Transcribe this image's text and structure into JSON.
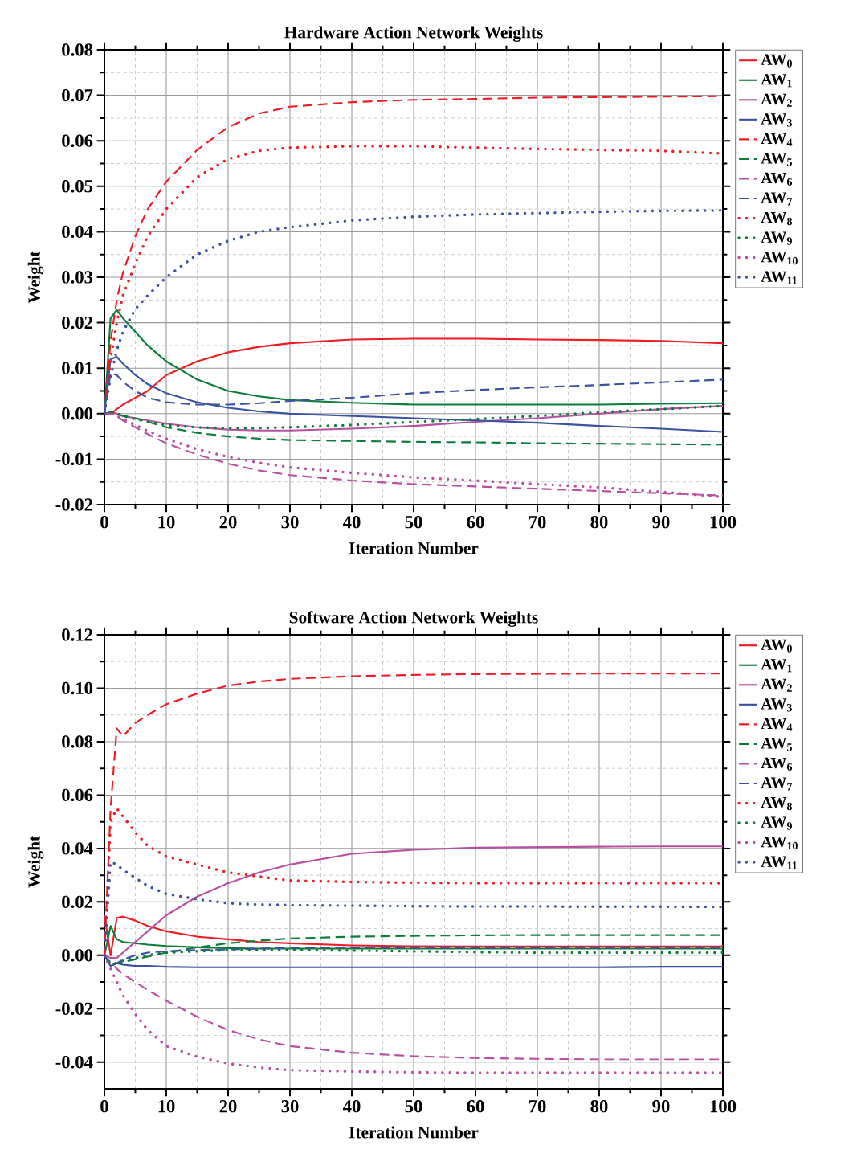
{
  "chart_data": [
    {
      "type": "line",
      "title": "Hardware Action Network Weights",
      "xlabel": "Iteration Number",
      "ylabel": "Weight",
      "x": [
        0,
        1,
        2,
        3,
        5,
        7,
        10,
        15,
        20,
        25,
        30,
        40,
        50,
        60,
        70,
        80,
        90,
        100
      ],
      "xlim": [
        0,
        100
      ],
      "xticks": [
        0,
        10,
        20,
        30,
        40,
        50,
        60,
        70,
        80,
        90,
        100
      ],
      "ylim": [
        -0.02,
        0.08
      ],
      "yticks": [
        {
          "value": -0.02,
          "label": "-0.02"
        },
        {
          "value": -0.01,
          "label": "-0.01"
        },
        {
          "value": 0,
          "label": "0.00"
        },
        {
          "value": 0.01,
          "label": "0.01"
        },
        {
          "value": 0.02,
          "label": "0.02"
        },
        {
          "value": 0.03,
          "label": "0.03"
        },
        {
          "value": 0.04,
          "label": "0.04"
        },
        {
          "value": 0.05,
          "label": "0.05"
        },
        {
          "value": 0.06,
          "label": "0.06"
        },
        {
          "value": 0.07,
          "label": "0.07"
        },
        {
          "value": 0.08,
          "label": "0.08"
        }
      ],
      "grid": true,
      "legend": "right",
      "marker": "none",
      "series": [
        {
          "name": "AW$_{0}$",
          "color": "#ee1c24",
          "line_style": "solid",
          "values": [
            0,
            0,
            0.001,
            0.002,
            0.0035,
            0.005,
            0.0085,
            0.0115,
            0.0135,
            0.0147,
            0.0155,
            0.0163,
            0.0165,
            0.0165,
            0.0163,
            0.0162,
            0.016,
            0.0155
          ]
        },
        {
          "name": "AW$_{1}$",
          "color": "#0b7c3a",
          "line_style": "solid",
          "values": [
            0,
            0.021,
            0.0228,
            0.021,
            0.018,
            0.015,
            0.0115,
            0.0075,
            0.005,
            0.0038,
            0.003,
            0.0024,
            0.002,
            0.002,
            0.002,
            0.002,
            0.0022,
            0.0023
          ]
        },
        {
          "name": "AW$_{2}$",
          "color": "#b84fa0",
          "line_style": "solid",
          "values": [
            0,
            0.0003,
            0,
            -0.0005,
            -0.001,
            -0.0015,
            -0.0022,
            -0.003,
            -0.0035,
            -0.0037,
            -0.0037,
            -0.0033,
            -0.0027,
            -0.0018,
            -0.001,
            0,
            0.001,
            0.0017
          ]
        },
        {
          "name": "AW$_{3}$",
          "color": "#3a52a2",
          "line_style": "solid",
          "values": [
            0,
            0.012,
            0.0125,
            0.011,
            0.0085,
            0.0065,
            0.0045,
            0.0025,
            0.0013,
            0.0005,
            0,
            -0.0005,
            -0.001,
            -0.0015,
            -0.002,
            -0.0027,
            -0.0033,
            -0.004
          ]
        },
        {
          "name": "AW$_{4}$",
          "color": "#ee1c24",
          "line_style": "dashed",
          "values": [
            0,
            0.016,
            0.025,
            0.031,
            0.039,
            0.045,
            0.051,
            0.058,
            0.063,
            0.066,
            0.0675,
            0.0685,
            0.069,
            0.0692,
            0.0695,
            0.0696,
            0.0697,
            0.0698
          ]
        },
        {
          "name": "AW$_{5}$",
          "color": "#0b7c3a",
          "line_style": "dashed",
          "values": [
            0,
            0.0003,
            0,
            -0.0005,
            -0.001,
            -0.0018,
            -0.003,
            -0.0042,
            -0.005,
            -0.0055,
            -0.0058,
            -0.006,
            -0.0062,
            -0.0063,
            -0.0065,
            -0.0066,
            -0.0067,
            -0.0068
          ]
        },
        {
          "name": "AW$_{6}$",
          "color": "#b84fa0",
          "line_style": "dashed",
          "values": [
            0,
            0,
            -0.0005,
            -0.0015,
            -0.003,
            -0.0045,
            -0.0065,
            -0.009,
            -0.011,
            -0.0125,
            -0.0135,
            -0.0147,
            -0.0155,
            -0.016,
            -0.0165,
            -0.017,
            -0.0175,
            -0.018
          ]
        },
        {
          "name": "AW$_{7}$",
          "color": "#3a52a2",
          "line_style": "dashed",
          "values": [
            0,
            0.009,
            0.0085,
            0.007,
            0.005,
            0.0035,
            0.0025,
            0.002,
            0.002,
            0.0023,
            0.0028,
            0.0035,
            0.0045,
            0.0052,
            0.0058,
            0.0063,
            0.0069,
            0.0075
          ]
        },
        {
          "name": "AW$_{8}$",
          "color": "#ee1c24",
          "line_style": "dotted",
          "values": [
            0,
            0.012,
            0.02,
            0.026,
            0.033,
            0.039,
            0.045,
            0.052,
            0.056,
            0.0578,
            0.0585,
            0.0588,
            0.0588,
            0.0585,
            0.0582,
            0.058,
            0.0578,
            0.0572
          ]
        },
        {
          "name": "AW$_{9}$",
          "color": "#0b7c3a",
          "line_style": "dotted",
          "values": [
            0,
            0.0003,
            0,
            -0.0005,
            -0.0012,
            -0.0018,
            -0.0025,
            -0.003,
            -0.0032,
            -0.0032,
            -0.003,
            -0.0025,
            -0.0018,
            -0.0012,
            -0.0005,
            0.0003,
            0.001,
            0.0017
          ]
        },
        {
          "name": "AW$_{10}$",
          "color": "#b84fa0",
          "line_style": "dotted",
          "values": [
            0,
            0,
            -0.0005,
            -0.0012,
            -0.0025,
            -0.0038,
            -0.0055,
            -0.0078,
            -0.0095,
            -0.0108,
            -0.0118,
            -0.013,
            -0.014,
            -0.0147,
            -0.0155,
            -0.0162,
            -0.0172,
            -0.0183
          ]
        },
        {
          "name": "AW$_{11}$",
          "color": "#3a52a2",
          "line_style": "dotted",
          "values": [
            0,
            0.008,
            0.014,
            0.018,
            0.023,
            0.026,
            0.03,
            0.035,
            0.038,
            0.04,
            0.041,
            0.0425,
            0.0433,
            0.0438,
            0.0441,
            0.0444,
            0.0446,
            0.0447
          ]
        }
      ]
    },
    {
      "type": "line",
      "title": "Software Action Network Weights",
      "xlabel": "Iteration Number",
      "ylabel": "Weight",
      "x": [
        0,
        1,
        2,
        3,
        5,
        7,
        10,
        15,
        20,
        25,
        30,
        40,
        50,
        60,
        70,
        80,
        90,
        100
      ],
      "xlim": [
        0,
        100
      ],
      "xticks": [
        0,
        10,
        20,
        30,
        40,
        50,
        60,
        70,
        80,
        90,
        100
      ],
      "ylim": [
        -0.05,
        0.12
      ],
      "yticks": [
        {
          "value": -0.04,
          "label": "-0.04"
        },
        {
          "value": -0.02,
          "label": "-0.02"
        },
        {
          "value": 0,
          "label": "0.00"
        },
        {
          "value": 0.02,
          "label": "0.02"
        },
        {
          "value": 0.04,
          "label": "0.04"
        },
        {
          "value": 0.06,
          "label": "0.06"
        },
        {
          "value": 0.08,
          "label": "0.08"
        },
        {
          "value": 0.1,
          "label": "0.10"
        },
        {
          "value": 0.12,
          "label": "0.12"
        }
      ],
      "grid": true,
      "legend": "right",
      "marker": "none",
      "series": [
        {
          "name": "AW$_{0}$",
          "color": "#ee1c24",
          "line_style": "solid",
          "values": [
            0.015,
            0,
            0.014,
            0.0145,
            0.013,
            0.011,
            0.009,
            0.007,
            0.006,
            0.005,
            0.0045,
            0.0037,
            0.0034,
            0.0033,
            0.0033,
            0.0033,
            0.0033,
            0.0033
          ]
        },
        {
          "name": "AW$_{1}$",
          "color": "#0b7c3a",
          "line_style": "solid",
          "values": [
            0,
            0.011,
            0.006,
            0.005,
            0.0045,
            0.004,
            0.0035,
            0.003,
            0.0027,
            0.0025,
            0.0025,
            0.0025,
            0.0025,
            0.0025,
            0.0025,
            0.0025,
            0.0025,
            0.0025
          ]
        },
        {
          "name": "AW$_{2}$",
          "color": "#b84fa0",
          "line_style": "solid",
          "values": [
            0,
            -0.001,
            -0.001,
            0.001,
            0.005,
            0.009,
            0.015,
            0.022,
            0.027,
            0.031,
            0.034,
            0.038,
            0.0395,
            0.0403,
            0.0405,
            0.0407,
            0.0408,
            0.0408
          ]
        },
        {
          "name": "AW$_{3}$",
          "color": "#3a52a2",
          "line_style": "solid",
          "values": [
            0,
            -0.004,
            -0.003,
            -0.0035,
            -0.004,
            -0.004,
            -0.0043,
            -0.0045,
            -0.0045,
            -0.0045,
            -0.0045,
            -0.0045,
            -0.0045,
            -0.0045,
            -0.0045,
            -0.0045,
            -0.0043,
            -0.0043
          ]
        },
        {
          "name": "AW$_{4}$",
          "color": "#ee1c24",
          "line_style": "dashed",
          "values": [
            0,
            0.055,
            0.085,
            0.082,
            0.087,
            0.09,
            0.094,
            0.098,
            0.101,
            0.1025,
            0.1035,
            0.1045,
            0.105,
            0.1053,
            0.1054,
            0.1055,
            0.1055,
            0.1055
          ]
        },
        {
          "name": "AW$_{5}$",
          "color": "#0b7c3a",
          "line_style": "dashed",
          "values": [
            0,
            -0.004,
            -0.003,
            -0.0025,
            -0.0015,
            -0.0005,
            0.001,
            0.003,
            0.0045,
            0.0055,
            0.0063,
            0.007,
            0.0073,
            0.0075,
            0.0076,
            0.0076,
            0.0076,
            0.0076
          ]
        },
        {
          "name": "AW$_{6}$",
          "color": "#b84fa0",
          "line_style": "dashed",
          "values": [
            0,
            -0.003,
            -0.005,
            -0.007,
            -0.01,
            -0.013,
            -0.017,
            -0.023,
            -0.028,
            -0.0315,
            -0.034,
            -0.0365,
            -0.0378,
            -0.0385,
            -0.0388,
            -0.039,
            -0.039,
            -0.039
          ]
        },
        {
          "name": "AW$_{7}$",
          "color": "#3a52a2",
          "line_style": "dashed",
          "values": [
            0,
            -0.004,
            -0.003,
            -0.0015,
            0,
            0.001,
            0.0015,
            0.002,
            0.0022,
            0.0025,
            0.0028,
            0.003,
            0.0028,
            0.0028,
            0.0028,
            0.0028,
            0.0028,
            0.0028
          ]
        },
        {
          "name": "AW$_{8}$",
          "color": "#ee1c24",
          "line_style": "dotted",
          "values": [
            0,
            0.05,
            0.055,
            0.052,
            0.046,
            0.041,
            0.037,
            0.034,
            0.031,
            0.0295,
            0.028,
            0.0275,
            0.0272,
            0.027,
            0.027,
            0.027,
            0.027,
            0.027
          ]
        },
        {
          "name": "AW$_{9}$",
          "color": "#0b7c3a",
          "line_style": "dotted",
          "values": [
            0,
            -0.003,
            -0.003,
            -0.002,
            -0.001,
            0,
            0.001,
            0.0015,
            0.002,
            0.002,
            0.002,
            0.0018,
            0.0015,
            0.0012,
            0.001,
            0.001,
            0.001,
            0.001
          ]
        },
        {
          "name": "AW$_{10}$",
          "color": "#b84fa0",
          "line_style": "dotted",
          "values": [
            0,
            -0.005,
            -0.01,
            -0.015,
            -0.022,
            -0.028,
            -0.034,
            -0.038,
            -0.0405,
            -0.042,
            -0.043,
            -0.0435,
            -0.0438,
            -0.044,
            -0.044,
            -0.044,
            -0.044,
            -0.044
          ]
        },
        {
          "name": "AW$_{11}$",
          "color": "#3a52a2",
          "line_style": "dotted",
          "values": [
            0,
            0.035,
            0.034,
            0.032,
            0.029,
            0.026,
            0.023,
            0.021,
            0.0195,
            0.019,
            0.0188,
            0.0186,
            0.0184,
            0.0183,
            0.0183,
            0.0182,
            0.0182,
            0.0181
          ]
        }
      ]
    }
  ]
}
